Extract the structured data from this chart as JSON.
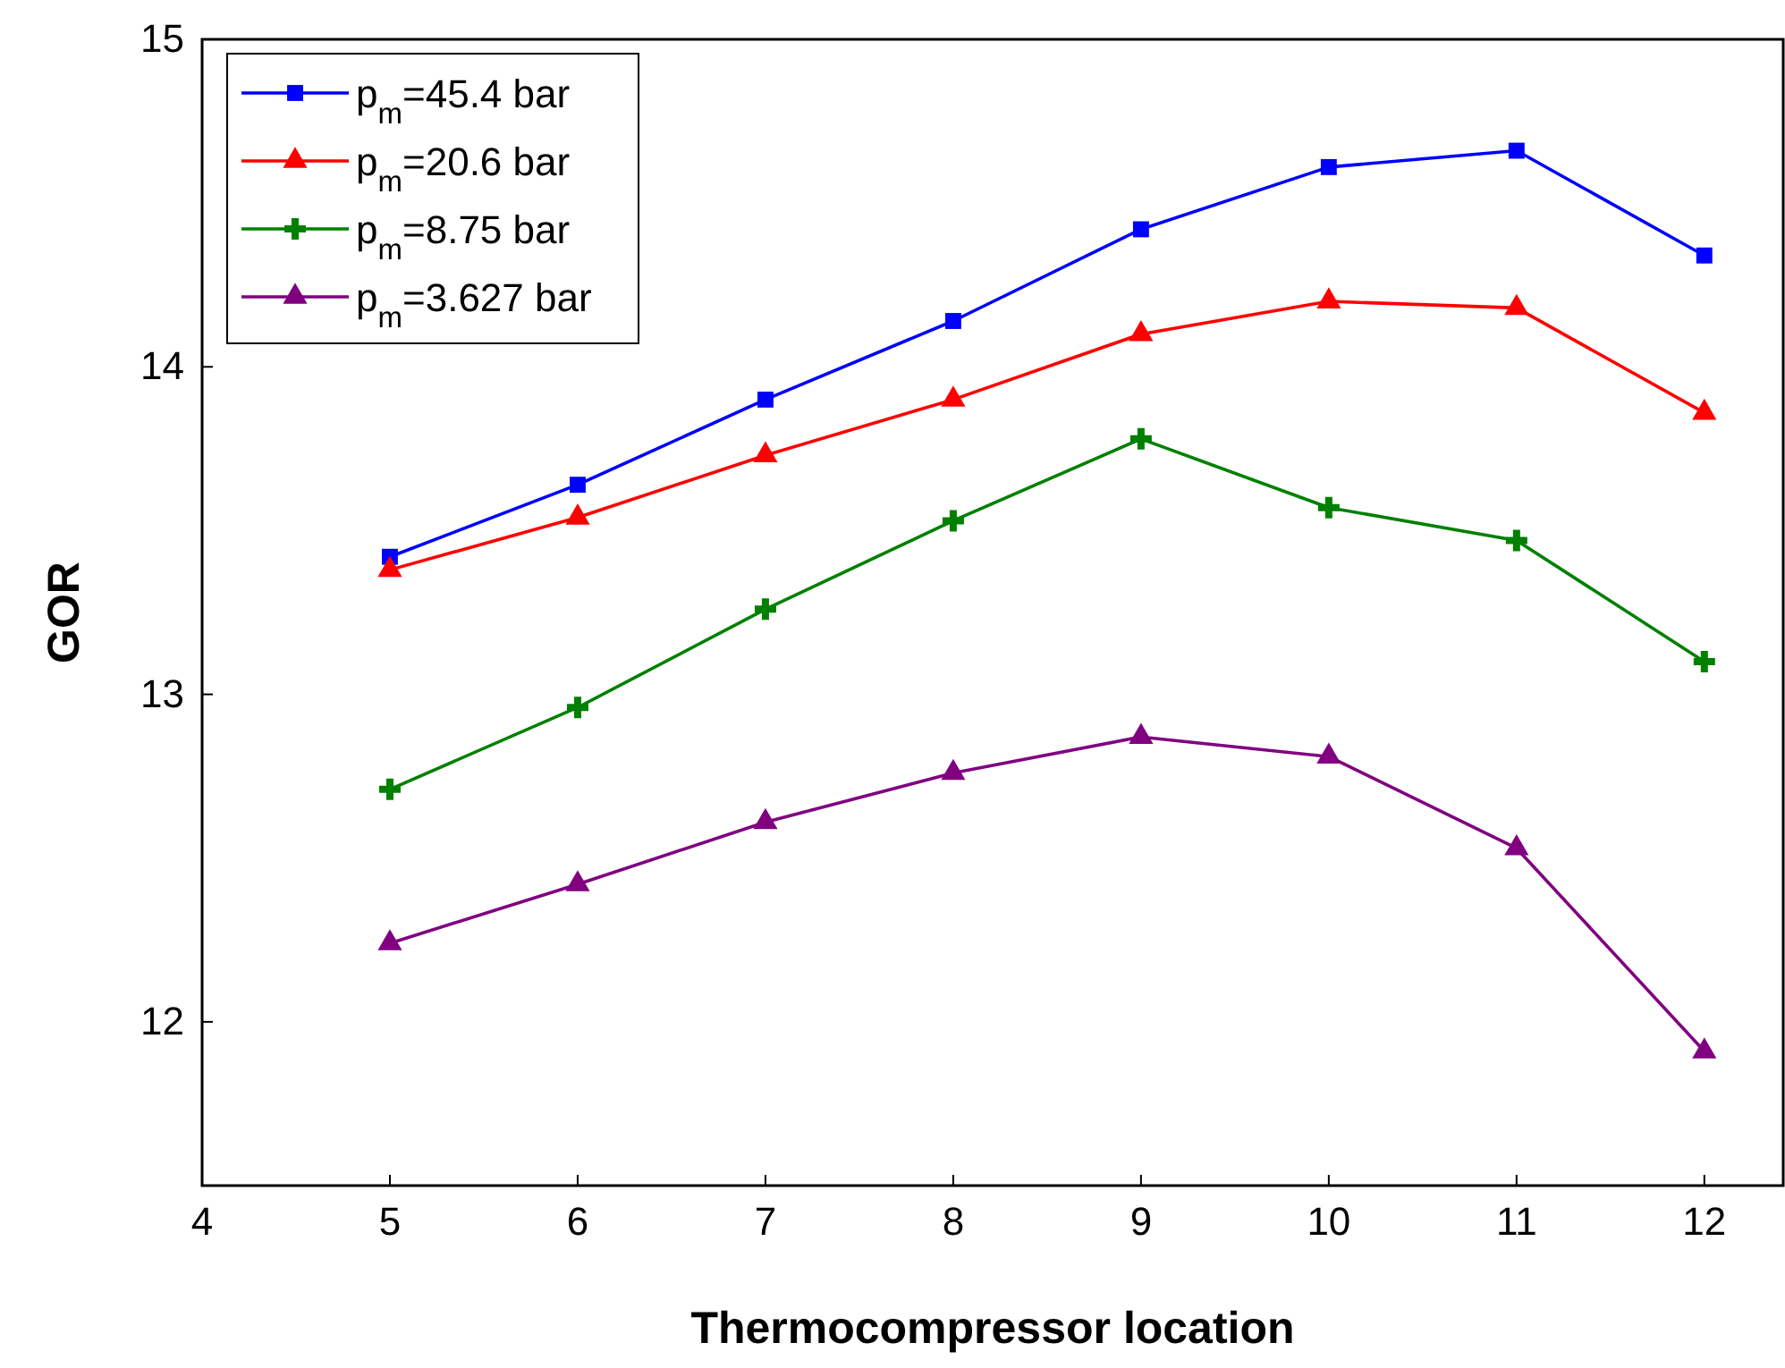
{
  "chart_data": {
    "type": "line",
    "xlabel": "Thermocompressor location",
    "ylabel": "GOR",
    "x": [
      5,
      6,
      7,
      8,
      9,
      10,
      11,
      12
    ],
    "xlim": [
      4,
      12.42
    ],
    "xticks": [
      4,
      5,
      6,
      7,
      8,
      9,
      10,
      11,
      12
    ],
    "ylim": [
      11.5,
      15
    ],
    "yticks": [
      12,
      13,
      14,
      15
    ],
    "grid": false,
    "legend": "top left",
    "series": [
      {
        "name": "p$_{m}$=45.4 bar",
        "color": "#0000ff",
        "marker": "square",
        "values": [
          13.42,
          13.64,
          13.9,
          14.14,
          14.42,
          14.61,
          14.66,
          14.34
        ]
      },
      {
        "name": "p$_{m}$=20.6 bar",
        "color": "#ff0000",
        "marker": "triangle",
        "values": [
          13.38,
          13.54,
          13.73,
          13.9,
          14.1,
          14.2,
          14.18,
          13.86
        ]
      },
      {
        "name": "p$_{m}$=8.75 bar",
        "color": "#008000",
        "marker": "cross",
        "values": [
          12.71,
          12.96,
          13.26,
          13.53,
          13.78,
          13.57,
          13.47,
          13.1
        ]
      },
      {
        "name": "p$_{m}$=3.627 bar",
        "color": "#800080",
        "marker": "triangle",
        "values": [
          12.24,
          12.42,
          12.61,
          12.76,
          12.87,
          12.81,
          12.53,
          11.91
        ]
      }
    ]
  }
}
